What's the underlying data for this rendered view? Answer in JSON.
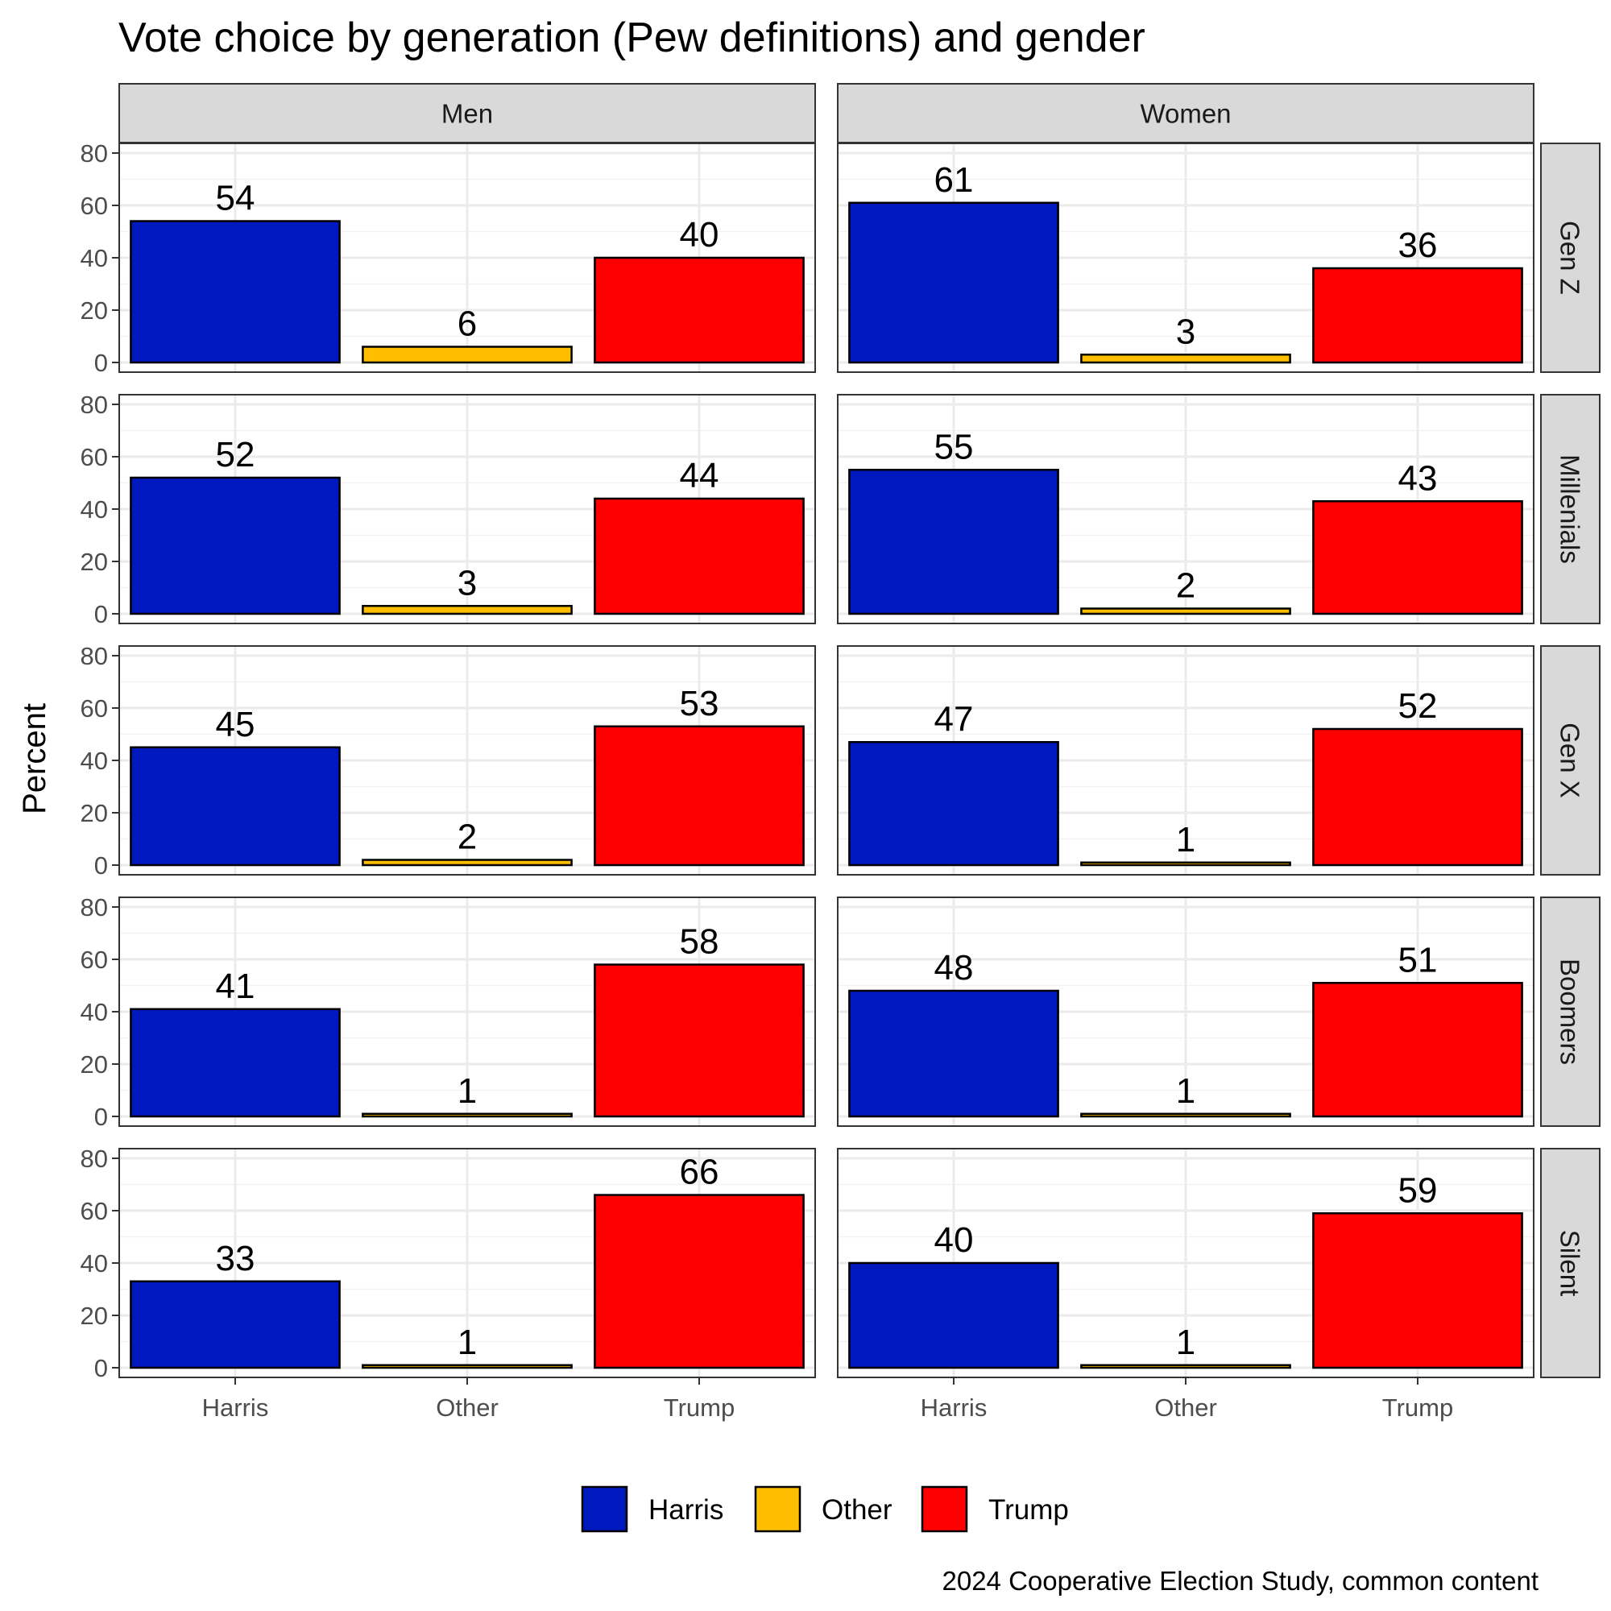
{
  "chart_data": {
    "type": "bar",
    "title": "Vote choice by generation (Pew definitions) and gender",
    "ylabel": "Percent",
    "xlabel": "",
    "caption": "2024 Cooperative Election Study, common content",
    "categories": [
      "Harris",
      "Other",
      "Trump"
    ],
    "columns": [
      "Men",
      "Women"
    ],
    "rows": [
      "Gen Z",
      "Millenials",
      "Gen X",
      "Boomers",
      "Silent"
    ],
    "ylim": [
      0,
      80
    ],
    "yticks": [
      0,
      20,
      40,
      60,
      80
    ],
    "colors": {
      "Harris": "#0019BF",
      "Other": "#FFBF00",
      "Trump": "#FF0000"
    },
    "legend": [
      "Harris",
      "Other",
      "Trump"
    ],
    "legend_position": "bottom",
    "panels": [
      {
        "row": "Gen Z",
        "column": "Men",
        "values": [
          54,
          6,
          40
        ]
      },
      {
        "row": "Gen Z",
        "column": "Women",
        "values": [
          61,
          3,
          36
        ]
      },
      {
        "row": "Millenials",
        "column": "Men",
        "values": [
          52,
          3,
          44
        ]
      },
      {
        "row": "Millenials",
        "column": "Women",
        "values": [
          55,
          2,
          43
        ]
      },
      {
        "row": "Gen X",
        "column": "Men",
        "values": [
          45,
          2,
          53
        ]
      },
      {
        "row": "Gen X",
        "column": "Women",
        "values": [
          47,
          1,
          52
        ]
      },
      {
        "row": "Boomers",
        "column": "Men",
        "values": [
          41,
          1,
          58
        ]
      },
      {
        "row": "Boomers",
        "column": "Women",
        "values": [
          48,
          1,
          51
        ]
      },
      {
        "row": "Silent",
        "column": "Men",
        "values": [
          33,
          1,
          66
        ]
      },
      {
        "row": "Silent",
        "column": "Women",
        "values": [
          40,
          1,
          59
        ]
      }
    ]
  }
}
